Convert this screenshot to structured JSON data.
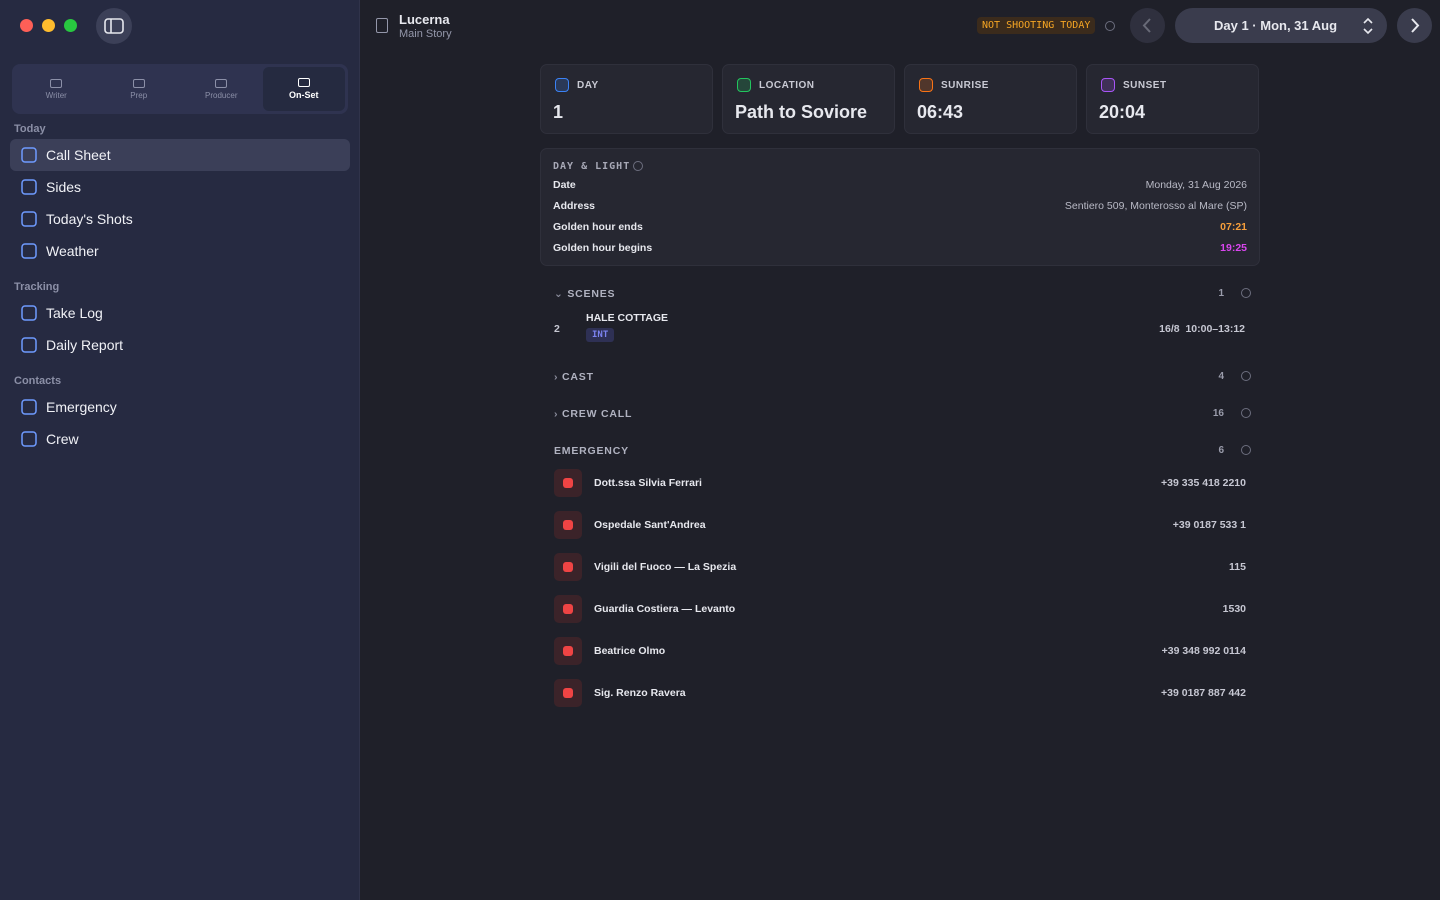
{
  "window": {
    "title": "Lucerna",
    "subtitle": "Main Story"
  },
  "sidebar": {
    "modes": [
      "Writer",
      "Prep",
      "Producer",
      "On-Set"
    ],
    "sections": [
      {
        "heading": "Today",
        "items": [
          "Call Sheet",
          "Sides",
          "Today's Shots",
          "Weather"
        ]
      },
      {
        "heading": "Tracking",
        "items": [
          "Take Log",
          "Daily Report"
        ]
      },
      {
        "heading": "Contacts",
        "items": [
          "Emergency",
          "Crew"
        ]
      }
    ]
  },
  "header": {
    "status": "NOT SHOOTING TODAY",
    "day_selector": "Day 1 · Mon, 31 Aug"
  },
  "summary": [
    {
      "label": "DAY",
      "value": 1
    },
    {
      "label": "LOCATION",
      "value": "Path to Soviore"
    },
    {
      "label": "SUNRISE",
      "value": "06:43"
    },
    {
      "label": "SUNSET",
      "value": "20:04"
    }
  ],
  "day_light": {
    "title": "DAY & LIGHT",
    "rows": [
      {
        "label": "Date",
        "value": "Monday, 31 Aug 2026"
      },
      {
        "label": "Address",
        "value": "Sentiero 509, Monterosso al Mare (SP)"
      },
      {
        "label": "Golden hour ends",
        "value": "07:21"
      },
      {
        "label": "Golden hour begins",
        "value": "19:25"
      }
    ]
  },
  "scenes": {
    "title": "SCENES",
    "count": 1,
    "items": [
      {
        "number": 2,
        "name": "HALE COTTAGE",
        "tag": "INT",
        "schedule": "16/8  10:00–13:12"
      }
    ]
  },
  "cast": {
    "title": "CAST",
    "count": 4
  },
  "crew_call": {
    "title": "CREW CALL",
    "count": 16
  },
  "emergency": {
    "title": "EMERGENCY",
    "count": 6,
    "contacts": [
      {
        "name": "Dott.ssa Silvia Ferrari",
        "phone": "+39 335 418 2210"
      },
      {
        "name": "Ospedale Sant'Andrea",
        "phone": "+39 0187 533 1"
      },
      {
        "name": "Vigili del Fuoco — La Spezia",
        "phone": "115"
      },
      {
        "name": "Guardia Costiera — Levanto",
        "phone": "1530"
      },
      {
        "name": "Beatrice Olmo",
        "phone": "+39 348 992 0114"
      },
      {
        "name": "Sig. Renzo Ravera",
        "phone": "+39 0187 887 442"
      }
    ]
  }
}
